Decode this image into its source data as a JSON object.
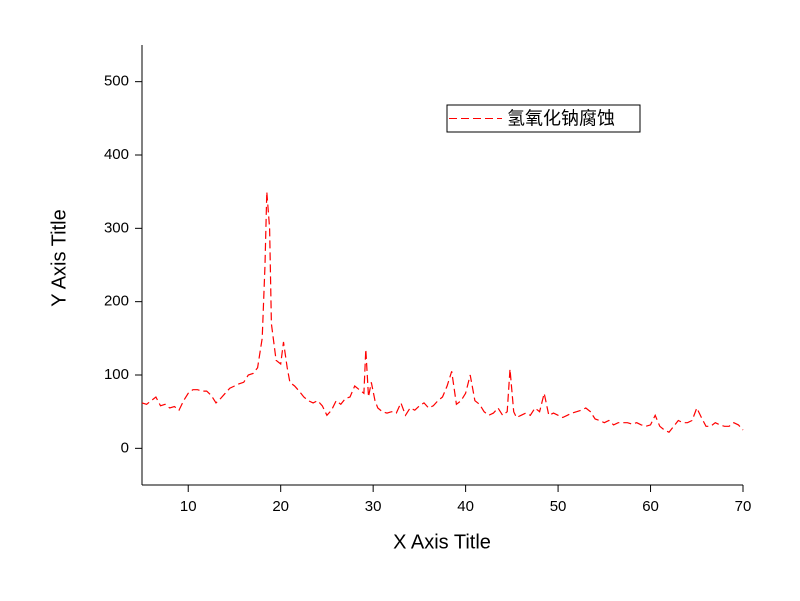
{
  "chart_data": {
    "type": "line",
    "x_label": "X Axis Title",
    "y_label": "Y Axis Title",
    "xlim": [
      5,
      70
    ],
    "ylim": [
      -50,
      550
    ],
    "xticks": [
      10,
      20,
      30,
      40,
      50,
      60,
      70
    ],
    "yticks": [
      0,
      100,
      200,
      300,
      400,
      500
    ],
    "legend": "upper right",
    "series": [
      {
        "name": "氢氧化钠腐蚀",
        "color": "#ff0000",
        "x": [
          5,
          5.5,
          6,
          6.5,
          7,
          7.5,
          8,
          8.5,
          9,
          9.5,
          10,
          10.5,
          11,
          11.5,
          12,
          12.5,
          13,
          13.5,
          14,
          14.5,
          15,
          15.5,
          16,
          16.5,
          17,
          17.5,
          18,
          18.3,
          18.5,
          18.8,
          19,
          19.5,
          20,
          20.3,
          20.7,
          21,
          21.5,
          22,
          22.5,
          23,
          23.5,
          24,
          24.5,
          25,
          25.5,
          26,
          26.5,
          27,
          27.5,
          28,
          28.5,
          29,
          29.2,
          29.5,
          29.8,
          30.2,
          30.5,
          31,
          31.5,
          32,
          32.5,
          33,
          33.5,
          34,
          34.5,
          35,
          35.5,
          36,
          36.5,
          37,
          37.5,
          38,
          38.5,
          39,
          39.5,
          40,
          40.5,
          41,
          41.5,
          42,
          42.5,
          43,
          43.5,
          44,
          44.5,
          44.8,
          45.2,
          45.5,
          46,
          46.5,
          47,
          47.5,
          48,
          48.5,
          49,
          49.5,
          50,
          50.5,
          51,
          51.5,
          52,
          52.5,
          53,
          53.5,
          54,
          54.5,
          55,
          55.5,
          56,
          56.5,
          57,
          57.5,
          58,
          58.5,
          59,
          59.5,
          60,
          60.5,
          61,
          61.5,
          62,
          62.5,
          63,
          63.5,
          64,
          64.5,
          65,
          65.5,
          66,
          66.5,
          67,
          67.5,
          68,
          68.5,
          69,
          69.5,
          70
        ],
        "values": [
          62,
          60,
          65,
          70,
          58,
          60,
          55,
          57,
          52,
          65,
          75,
          80,
          80,
          78,
          78,
          72,
          62,
          68,
          75,
          82,
          85,
          88,
          90,
          100,
          102,
          110,
          150,
          250,
          350,
          300,
          170,
          120,
          115,
          145,
          110,
          90,
          85,
          78,
          70,
          65,
          62,
          65,
          58,
          45,
          52,
          65,
          60,
          68,
          70,
          85,
          80,
          75,
          135,
          70,
          90,
          65,
          55,
          50,
          48,
          50,
          48,
          62,
          45,
          55,
          52,
          58,
          62,
          55,
          58,
          65,
          70,
          85,
          105,
          60,
          65,
          75,
          100,
          65,
          60,
          50,
          45,
          48,
          55,
          45,
          50,
          108,
          50,
          42,
          45,
          48,
          45,
          55,
          50,
          75,
          45,
          48,
          45,
          42,
          45,
          48,
          50,
          52,
          55,
          50,
          40,
          38,
          35,
          38,
          32,
          35,
          35,
          35,
          33,
          35,
          32,
          30,
          32,
          45,
          30,
          25,
          22,
          30,
          38,
          35,
          35,
          38,
          55,
          42,
          30,
          30,
          35,
          32,
          30,
          30,
          35,
          32,
          25
        ]
      }
    ]
  }
}
